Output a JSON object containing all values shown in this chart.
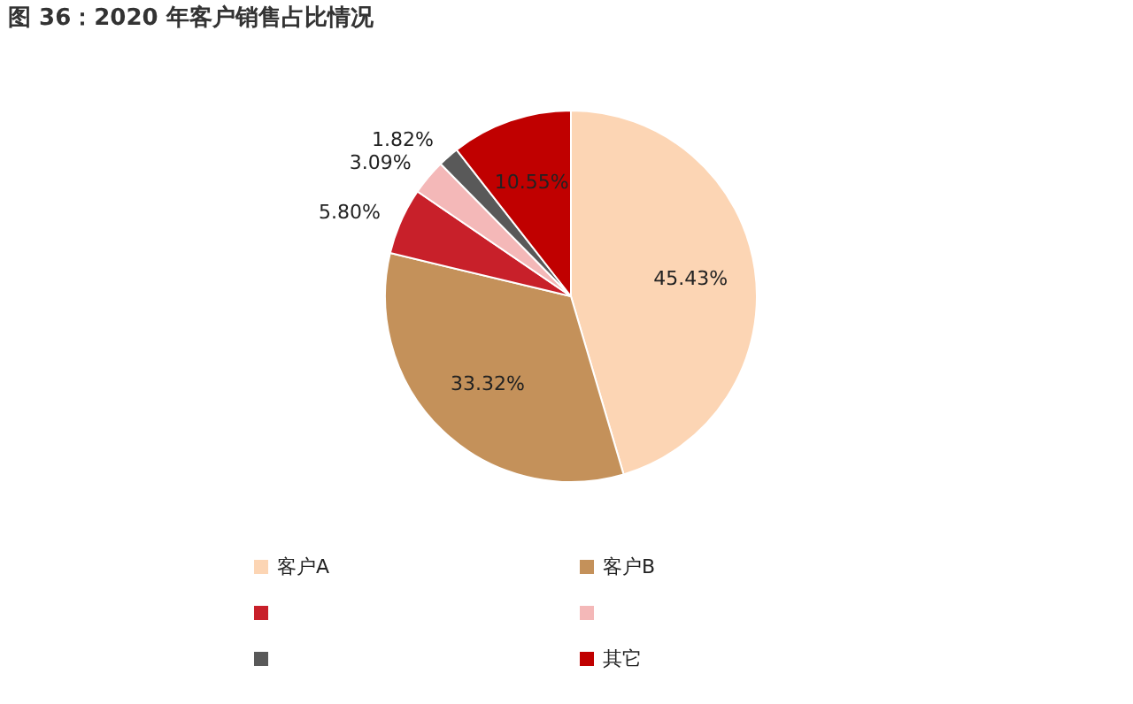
{
  "chart_data": {
    "type": "pie",
    "title": "图 36：2020 年客户销售占比情况",
    "categories": [
      "客户A",
      "客户B",
      null,
      null,
      null,
      "其它"
    ],
    "values": [
      45.43,
      33.32,
      5.8,
      3.09,
      1.82,
      10.55
    ],
    "colors": [
      "#fcd5b4",
      "#c4915a",
      "#c8202a",
      "#f4b8b8",
      "#595959",
      "#c00000"
    ],
    "value_labels": [
      "45.43%",
      "33.32%",
      "5.80%",
      "3.09%",
      "1.82%",
      "10.55%"
    ],
    "legend": "bottom"
  }
}
